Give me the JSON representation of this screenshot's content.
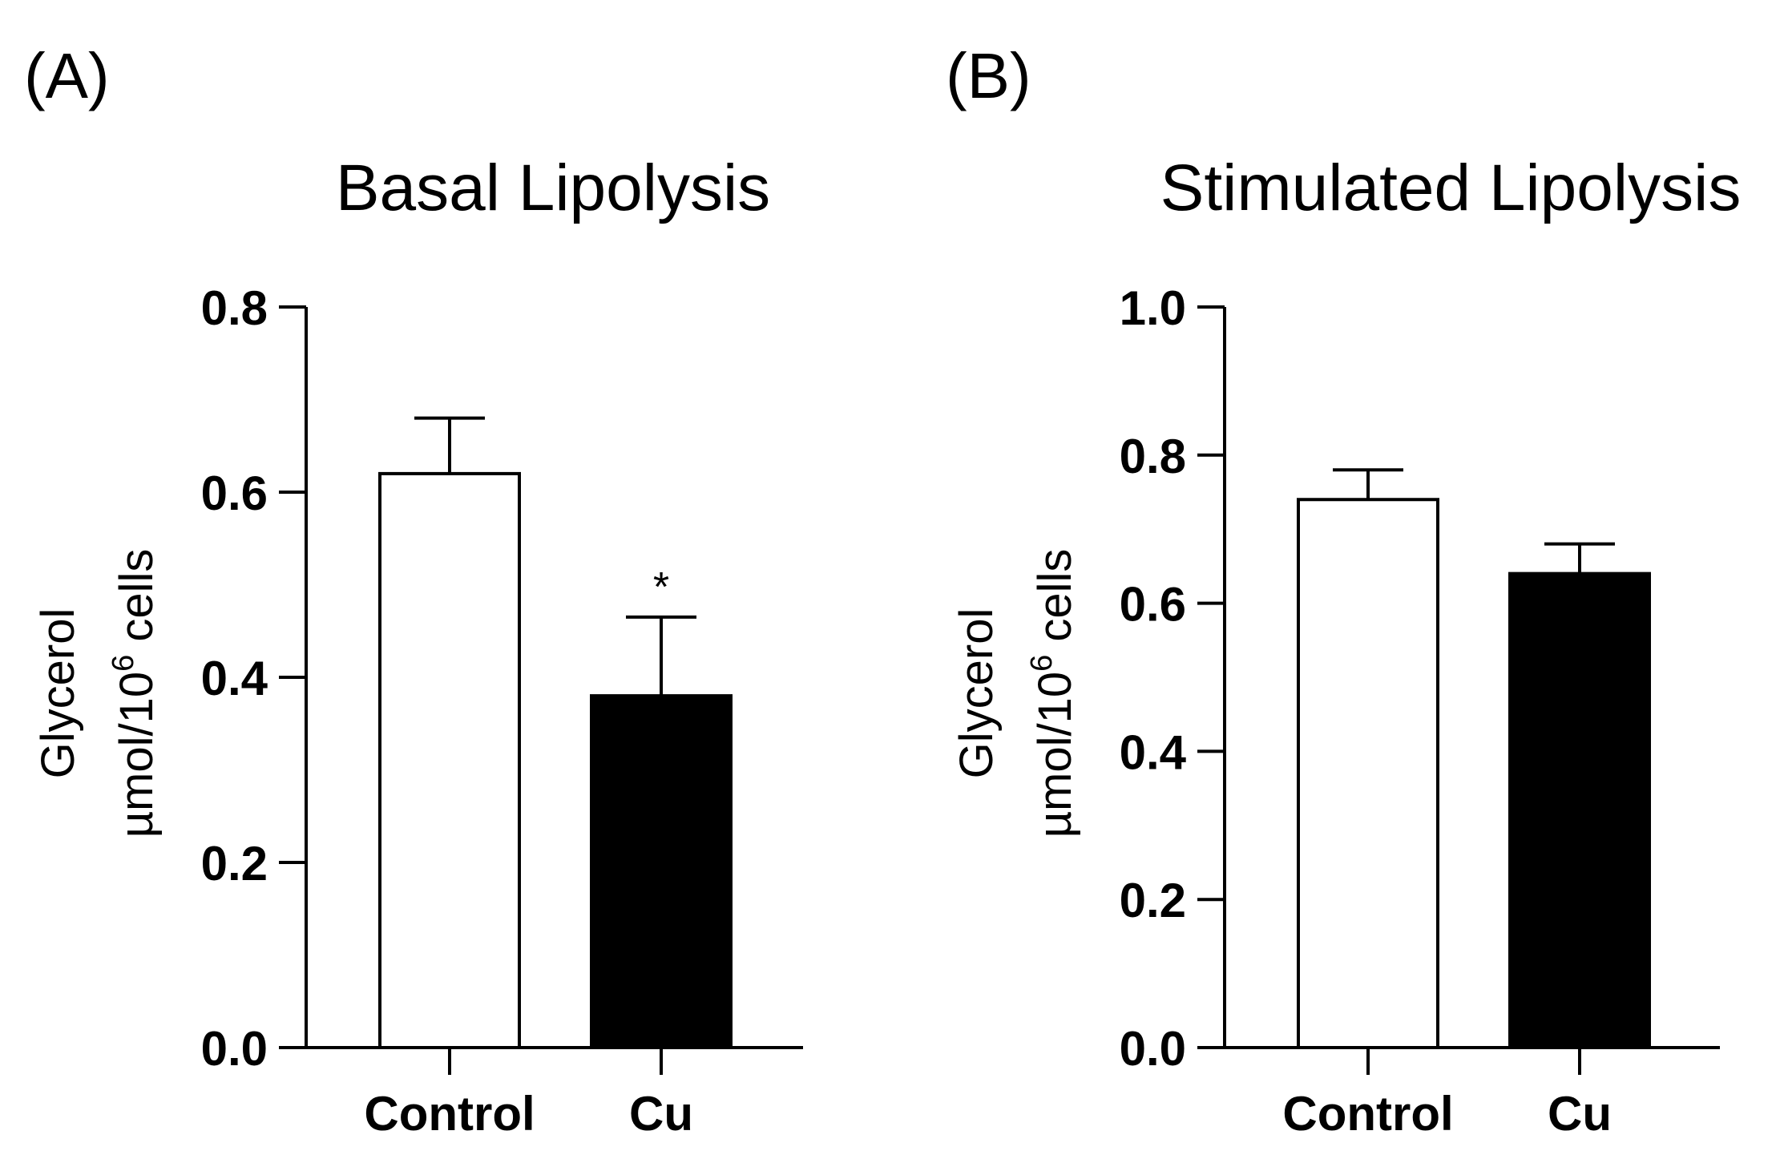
{
  "chart_data": [
    {
      "panel_label": "(A)",
      "type": "bar",
      "title": "Basal Lipolysis",
      "ylabel_line1": "Glycerol",
      "ylabel_line2_prefix": "µmol/10",
      "ylabel_line2_sup": "6",
      "ylabel_line2_suffix": " cells",
      "categories": [
        "Control",
        "Cu"
      ],
      "values": [
        0.62,
        0.38
      ],
      "errors": [
        0.06,
        0.085
      ],
      "bar_colors": [
        "#ffffff",
        "#000000"
      ],
      "significance": [
        "",
        "*"
      ],
      "ylim": [
        0,
        0.8
      ],
      "yticks": [
        0.0,
        0.2,
        0.4,
        0.6,
        0.8
      ],
      "ytick_labels": [
        "0.0",
        "0.2",
        "0.4",
        "0.6",
        "0.8"
      ]
    },
    {
      "panel_label": "(B)",
      "type": "bar",
      "title": "Stimulated Lipolysis",
      "ylabel_line1": "Glycerol",
      "ylabel_line2_prefix": "µmol/10",
      "ylabel_line2_sup": "6",
      "ylabel_line2_suffix": " cells",
      "categories": [
        "Control",
        "Cu"
      ],
      "values": [
        0.74,
        0.64
      ],
      "errors": [
        0.04,
        0.04
      ],
      "bar_colors": [
        "#ffffff",
        "#000000"
      ],
      "significance": [
        "",
        ""
      ],
      "ylim": [
        0,
        1.0
      ],
      "yticks": [
        0.0,
        0.2,
        0.4,
        0.6,
        0.8,
        1.0
      ],
      "ytick_labels": [
        "0.0",
        "0.2",
        "0.4",
        "0.6",
        "0.8",
        "1.0"
      ]
    }
  ]
}
